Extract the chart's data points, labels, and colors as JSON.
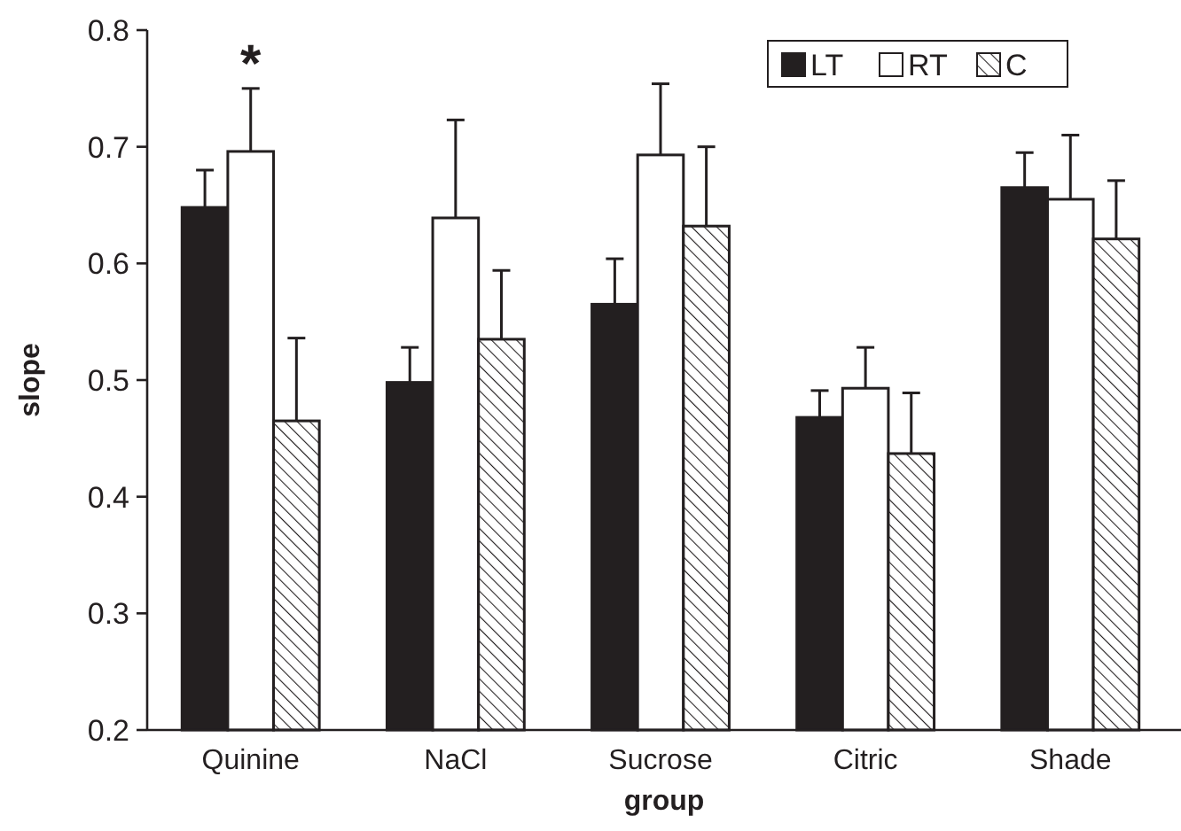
{
  "chart_data": {
    "type": "bar",
    "xlabel": "group",
    "ylabel": "slope",
    "categories": [
      "Quinine",
      "NaCl",
      "Sucrose",
      "Citric",
      "Shade"
    ],
    "series": [
      {
        "name": "LT",
        "color": "#231f20",
        "values": [
          0.648,
          0.498,
          0.565,
          0.468,
          0.665
        ],
        "errors": [
          [
            0.648,
            0.68
          ],
          [
            0.498,
            0.528
          ],
          [
            0.565,
            0.604
          ],
          [
            0.468,
            0.491
          ],
          [
            0.665,
            0.695
          ]
        ]
      },
      {
        "name": "RT",
        "color": "#ffffff",
        "values": [
          0.696,
          0.639,
          0.693,
          0.493,
          0.655
        ],
        "errors": [
          [
            0.696,
            0.75
          ],
          [
            0.639,
            0.723
          ],
          [
            0.693,
            0.754
          ],
          [
            0.493,
            0.528
          ],
          [
            0.655,
            0.71
          ]
        ]
      },
      {
        "name": "C",
        "color": "#231f20",
        "values": [
          0.465,
          0.535,
          0.632,
          0.437,
          0.621
        ],
        "errors": [
          [
            0.465,
            0.536
          ],
          [
            0.535,
            0.594
          ],
          [
            0.632,
            0.7
          ],
          [
            0.437,
            0.489
          ],
          [
            0.621,
            0.671
          ]
        ]
      }
    ],
    "ylim": [
      0.2,
      0.8
    ],
    "yticks": [
      0.2,
      0.3,
      0.4,
      0.5,
      0.6,
      0.7,
      0.8
    ],
    "grid": false,
    "legend": "top right",
    "annotations": [
      "*"
    ]
  }
}
